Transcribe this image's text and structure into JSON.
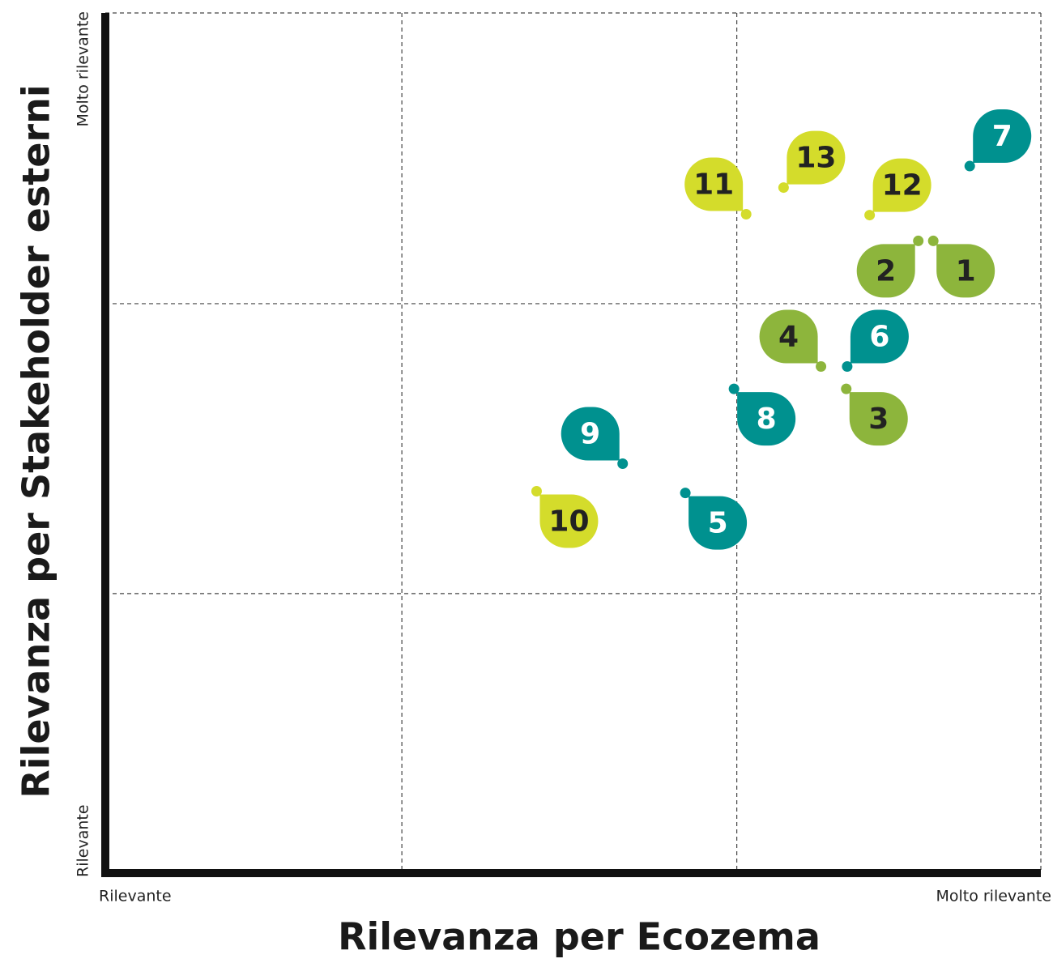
{
  "chart_data": {
    "type": "scatter",
    "xlabel": "Rilevanza per Ecozema",
    "ylabel": "Rilevanza per Stakeholder esterni",
    "xlim": [
      0,
      100
    ],
    "ylim": [
      0,
      100
    ],
    "xticks": [
      {
        "value": 0,
        "label": "Rilevante"
      },
      {
        "value": 100,
        "label": "Molto rilevante"
      }
    ],
    "yticks": [
      {
        "value": 0,
        "label": "Rilevante"
      },
      {
        "value": 100,
        "label": "Molto rilevante"
      }
    ],
    "xgrid": [
      31.7,
      67.5,
      100
    ],
    "ygrid": [
      32.5,
      66.2,
      100
    ],
    "grid": true,
    "labels": [
      "1",
      "2",
      "3",
      "4",
      "5",
      "6",
      "7",
      "8",
      "9",
      "10",
      "11",
      "12",
      "13"
    ],
    "x": [
      88.5,
      86.9,
      79.2,
      76.5,
      62.0,
      79.3,
      92.4,
      67.2,
      55.3,
      46.1,
      68.5,
      81.7,
      72.5
    ],
    "values": [
      73.5,
      73.5,
      56.3,
      58.9,
      44.2,
      58.9,
      82.2,
      56.3,
      47.6,
      44.4,
      76.6,
      76.5,
      79.7
    ],
    "colors": [
      "#8db53c",
      "#8db53c",
      "#8db53c",
      "#8db53c",
      "#00918f",
      "#00918f",
      "#00918f",
      "#00918f",
      "#00918f",
      "#d4dc2b",
      "#d4dc2b",
      "#d4dc2b",
      "#d4dc2b"
    ]
  }
}
